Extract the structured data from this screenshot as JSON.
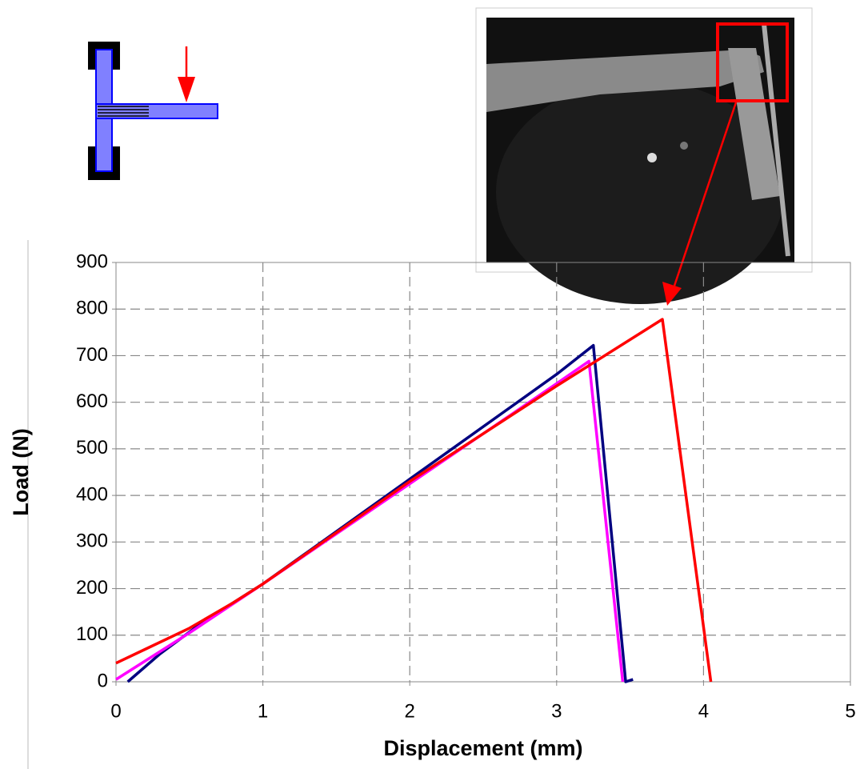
{
  "chart_data": {
    "type": "line",
    "x_label": "Displacement (mm)",
    "y_label": "Load (N)",
    "xlim": [
      0,
      5
    ],
    "xticks": [
      0,
      1,
      2,
      3,
      4,
      5
    ],
    "ylim": [
      0,
      900
    ],
    "yticks": [
      0,
      100,
      200,
      300,
      400,
      500,
      600,
      700,
      800,
      900
    ],
    "grid": true,
    "series": [
      {
        "color": "#000080",
        "x": [
          0.08,
          0.3,
          0.6,
          1,
          2,
          3,
          3.25,
          3.47,
          3.52
        ],
        "values": [
          0,
          60,
          130,
          210,
          435,
          660,
          722,
          0,
          5
        ]
      },
      {
        "color": "#ff00ff",
        "x": [
          0,
          0.5,
          1,
          2,
          3,
          3.22,
          3.45
        ],
        "values": [
          5,
          105,
          210,
          425,
          640,
          688,
          0
        ]
      },
      {
        "color": "#ff0000",
        "x": [
          0,
          0.2,
          0.5,
          0.8,
          1,
          2,
          3,
          3.72,
          4.05
        ],
        "values": [
          40,
          70,
          115,
          170,
          210,
          430,
          635,
          778,
          0
        ]
      }
    ]
  }
}
